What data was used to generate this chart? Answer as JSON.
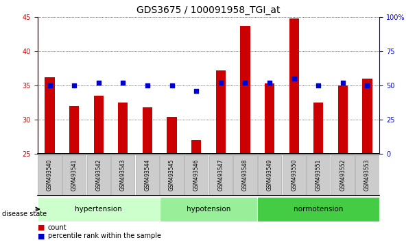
{
  "title": "GDS3675 / 100091958_TGI_at",
  "samples": [
    "GSM493540",
    "GSM493541",
    "GSM493542",
    "GSM493543",
    "GSM493544",
    "GSM493545",
    "GSM493546",
    "GSM493547",
    "GSM493548",
    "GSM493549",
    "GSM493550",
    "GSM493551",
    "GSM493552",
    "GSM493553"
  ],
  "counts": [
    36.2,
    32.0,
    33.5,
    32.5,
    31.8,
    30.4,
    27.0,
    37.2,
    43.7,
    35.3,
    44.8,
    32.5,
    35.0,
    36.0
  ],
  "percentiles": [
    50,
    50,
    52,
    52,
    50,
    50,
    46,
    52,
    52,
    52,
    55,
    50,
    52,
    50
  ],
  "ylim_left": [
    25,
    45
  ],
  "ylim_right": [
    0,
    100
  ],
  "yticks_left": [
    25,
    30,
    35,
    40,
    45
  ],
  "yticks_right": [
    0,
    25,
    50,
    75,
    100
  ],
  "groups": [
    {
      "label": "hypertension",
      "start": 0,
      "end": 5,
      "color": "#ccffcc"
    },
    {
      "label": "hypotension",
      "start": 5,
      "end": 9,
      "color": "#99ee99"
    },
    {
      "label": "normotension",
      "start": 9,
      "end": 14,
      "color": "#44cc44"
    }
  ],
  "bar_color": "#cc0000",
  "dot_color": "#0000cc",
  "bg_color": "#ffffff",
  "disease_state_label": "disease state",
  "legend_count": "count",
  "legend_percentile": "percentile rank within the sample",
  "left_axis_color": "#cc0000",
  "right_axis_color": "#0000cc"
}
